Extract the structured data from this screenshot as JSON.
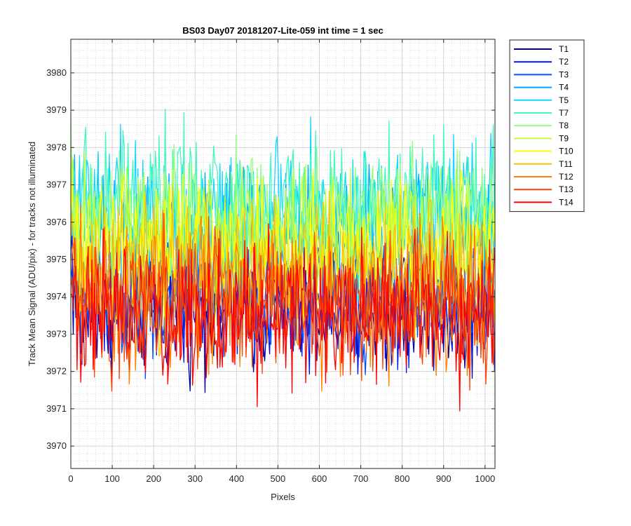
{
  "chart_data": {
    "type": "line",
    "title": "BS03 Day07 20181207-Lite-059 int time = 1 sec",
    "xlabel": "Pixels",
    "ylabel": "Track Mean Signal (ADU/pix) - for tracks not illuminated",
    "xlim": [
      0,
      1024
    ],
    "ylim": [
      3969.4,
      3980.9
    ],
    "x_ticks": [
      0,
      100,
      200,
      300,
      400,
      500,
      600,
      700,
      800,
      900,
      1000
    ],
    "y_ticks": [
      3970,
      3971,
      3972,
      3973,
      3974,
      3975,
      3976,
      3977,
      3978,
      3979,
      3980
    ],
    "grid": true,
    "minor_grid": true,
    "legend_position": "outside-right",
    "series": [
      {
        "name": "T1",
        "color": "#0000a8",
        "mean": 3973.6,
        "amplitude": 1.5
      },
      {
        "name": "T2",
        "color": "#0018e8",
        "mean": 3973.7,
        "amplitude": 1.5
      },
      {
        "name": "T3",
        "color": "#0050ff",
        "mean": 3974.0,
        "amplitude": 1.6
      },
      {
        "name": "T4",
        "color": "#00a8ff",
        "mean": 3975.6,
        "amplitude": 1.8
      },
      {
        "name": "T5",
        "color": "#10d8ff",
        "mean": 3976.2,
        "amplitude": 1.8
      },
      {
        "name": "T7",
        "color": "#40f8c0",
        "mean": 3976.4,
        "amplitude": 1.9
      },
      {
        "name": "T8",
        "color": "#90ff80",
        "mean": 3976.0,
        "amplitude": 1.8
      },
      {
        "name": "T9",
        "color": "#c8ff30",
        "mean": 3975.6,
        "amplitude": 1.7
      },
      {
        "name": "T10",
        "color": "#ffff00",
        "mean": 3975.2,
        "amplitude": 1.7
      },
      {
        "name": "T11",
        "color": "#ffc000",
        "mean": 3974.7,
        "amplitude": 1.7
      },
      {
        "name": "T12",
        "color": "#ff8000",
        "mean": 3974.0,
        "amplitude": 1.8
      },
      {
        "name": "T13",
        "color": "#ff4000",
        "mean": 3973.7,
        "amplitude": 1.8
      },
      {
        "name": "T14",
        "color": "#ff0000",
        "mean": 3973.6,
        "amplitude": 1.9
      }
    ]
  }
}
